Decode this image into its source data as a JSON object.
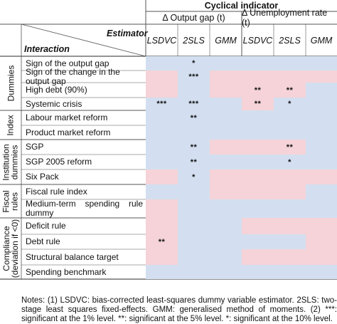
{
  "header": {
    "cyclical_indicator": "Cyclical indicator",
    "output_gap": "Δ Output gap (t)",
    "unemployment_rate": "Δ Unemployment rate (t)",
    "estimator_label": "Estimator",
    "interaction_label": "Interaction",
    "estimators": [
      "LSDVC",
      "2SLS",
      "GMM",
      "LSDVC",
      "2SLS",
      "GMM"
    ]
  },
  "groups": [
    {
      "label": "Dummies",
      "start": 0,
      "count": 4
    },
    {
      "label": "Index",
      "start": 4,
      "count": 2
    },
    {
      "label": "Institution dummies",
      "start": 6,
      "count": 3
    },
    {
      "label": "Fiscal rules",
      "start": 9,
      "count": 2
    },
    {
      "label": "Compliance (deviation if <0)",
      "start": 11,
      "count": 4
    }
  ],
  "rows": [
    {
      "label": "Sign of the output gap",
      "cells": [
        "",
        "*",
        "",
        "",
        "",
        ""
      ],
      "colors": [
        "b",
        "b",
        "b",
        "b",
        "b",
        "b"
      ]
    },
    {
      "label": "Sign of the change in the output gap",
      "cells": [
        "",
        "***",
        "",
        "",
        "",
        ""
      ],
      "colors": [
        "p",
        "b",
        "p",
        "p",
        "p",
        "p"
      ]
    },
    {
      "label": "High debt (90%)",
      "cells": [
        "",
        "",
        "",
        "**",
        "**",
        ""
      ],
      "colors": [
        "p",
        "b",
        "p",
        "p",
        "p",
        "b"
      ]
    },
    {
      "label": "Systemic crisis",
      "cells": [
        "***",
        "***",
        "",
        "**",
        "*",
        ""
      ],
      "colors": [
        "b",
        "b",
        "b",
        "p",
        "b",
        "b"
      ]
    },
    {
      "label": "Labour market reform",
      "cells": [
        "",
        "**",
        "",
        "",
        "",
        ""
      ],
      "colors": [
        "b",
        "b",
        "b",
        "b",
        "b",
        "b"
      ]
    },
    {
      "label": "Product market reform",
      "cells": [
        "",
        "",
        "",
        "",
        "",
        ""
      ],
      "colors": [
        "b",
        "b",
        "b",
        "b",
        "b",
        "b"
      ]
    },
    {
      "label": "SGP",
      "cells": [
        "",
        "**",
        "",
        "",
        "**",
        ""
      ],
      "colors": [
        "b",
        "b",
        "p",
        "p",
        "p",
        "b"
      ]
    },
    {
      "label": "SGP 2005 reform",
      "cells": [
        "",
        "**",
        "",
        "",
        "*",
        ""
      ],
      "colors": [
        "b",
        "b",
        "b",
        "b",
        "b",
        "b"
      ]
    },
    {
      "label": "Six Pack",
      "cells": [
        "",
        "*",
        "",
        "",
        "",
        ""
      ],
      "colors": [
        "p",
        "b",
        "p",
        "p",
        "p",
        "p"
      ]
    },
    {
      "label": "Fiscal rule index",
      "cells": [
        "",
        "",
        "",
        "",
        "",
        ""
      ],
      "colors": [
        "b",
        "b",
        "p",
        "p",
        "p",
        "b"
      ]
    },
    {
      "label": "Medium-term spending rule dummy",
      "cells": [
        "",
        "",
        "",
        "",
        "",
        ""
      ],
      "colors": [
        "p",
        "b",
        "b",
        "b",
        "b",
        "b"
      ]
    },
    {
      "label": "Deficit rule",
      "cells": [
        "",
        "",
        "",
        "",
        "",
        ""
      ],
      "colors": [
        "p",
        "b",
        "b",
        "p",
        "p",
        "p"
      ]
    },
    {
      "label": "Debt rule",
      "cells": [
        "**",
        "",
        "",
        "",
        "",
        ""
      ],
      "colors": [
        "p",
        "b",
        "b",
        "b",
        "b",
        "p"
      ]
    },
    {
      "label": "Structural balance target",
      "cells": [
        "",
        "",
        "",
        "",
        "",
        ""
      ],
      "colors": [
        "p",
        "b",
        "b",
        "p",
        "p",
        "p"
      ]
    },
    {
      "label": "Spending benchmark",
      "cells": [
        "",
        "",
        "",
        "",
        "",
        ""
      ],
      "colors": [
        "b",
        "b",
        "b",
        "b",
        "b",
        "b"
      ]
    }
  ],
  "colors": {
    "blue": "#d3dff0",
    "pink": "#f5d3d8",
    "line": "#555555"
  },
  "notes": "Notes: (1) LSDVC: bias-corrected least-squares dummy variable estimator. 2SLS: two-stage least squares fixed-effects. GMM: generalised method of moments. (2) ***: significant at the 1% level. **: significant at the 5% level. *: significant at the 10% level."
}
